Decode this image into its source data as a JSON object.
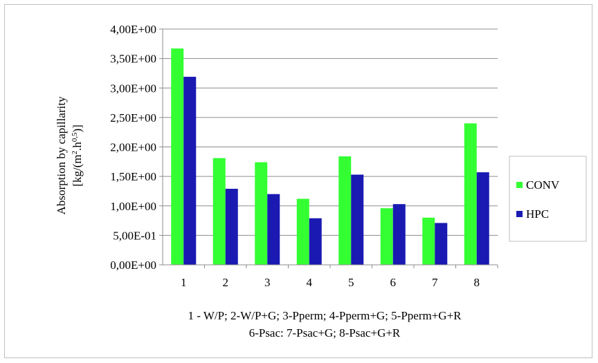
{
  "chart_data": {
    "type": "bar",
    "categories": [
      "1",
      "2",
      "3",
      "4",
      "5",
      "6",
      "7",
      "8"
    ],
    "series": [
      {
        "name": "CONV",
        "color": "#33ff33",
        "values": [
          3.67,
          1.81,
          1.74,
          1.12,
          1.84,
          0.96,
          0.8,
          2.4
        ]
      },
      {
        "name": "HPC",
        "color": "#1a1ab3",
        "values": [
          3.19,
          1.29,
          1.2,
          0.79,
          1.53,
          1.03,
          0.71,
          1.57
        ]
      }
    ],
    "ylim": [
      0,
      4
    ],
    "y_ticks": [
      0,
      0.5,
      1,
      1.5,
      2,
      2.5,
      3,
      3.5,
      4
    ],
    "y_tick_labels": [
      "0,00E+00",
      "5,00E-01",
      "1,00E+00",
      "1,50E+00",
      "2,00E+00",
      "2,50E+00",
      "3,00E+00",
      "3,50E+00",
      "4,00E+00"
    ],
    "ylabel": {
      "line1": "Absorption by capillarity",
      "line2_prefix": "[kg/(m",
      "line2_sup1": "2",
      "line2_mid": ".h",
      "line2_sup2": "0,5",
      "line2_suffix": ")]"
    },
    "xlabel": [
      "1 - W/P; 2-W/P+G; 3-Pperm; 4-Pperm+G; 5-Pperm+G+R",
      "6-Psac: 7-Psac+G; 8-Psac+G+R"
    ],
    "grid": true,
    "legend_position": "right"
  }
}
